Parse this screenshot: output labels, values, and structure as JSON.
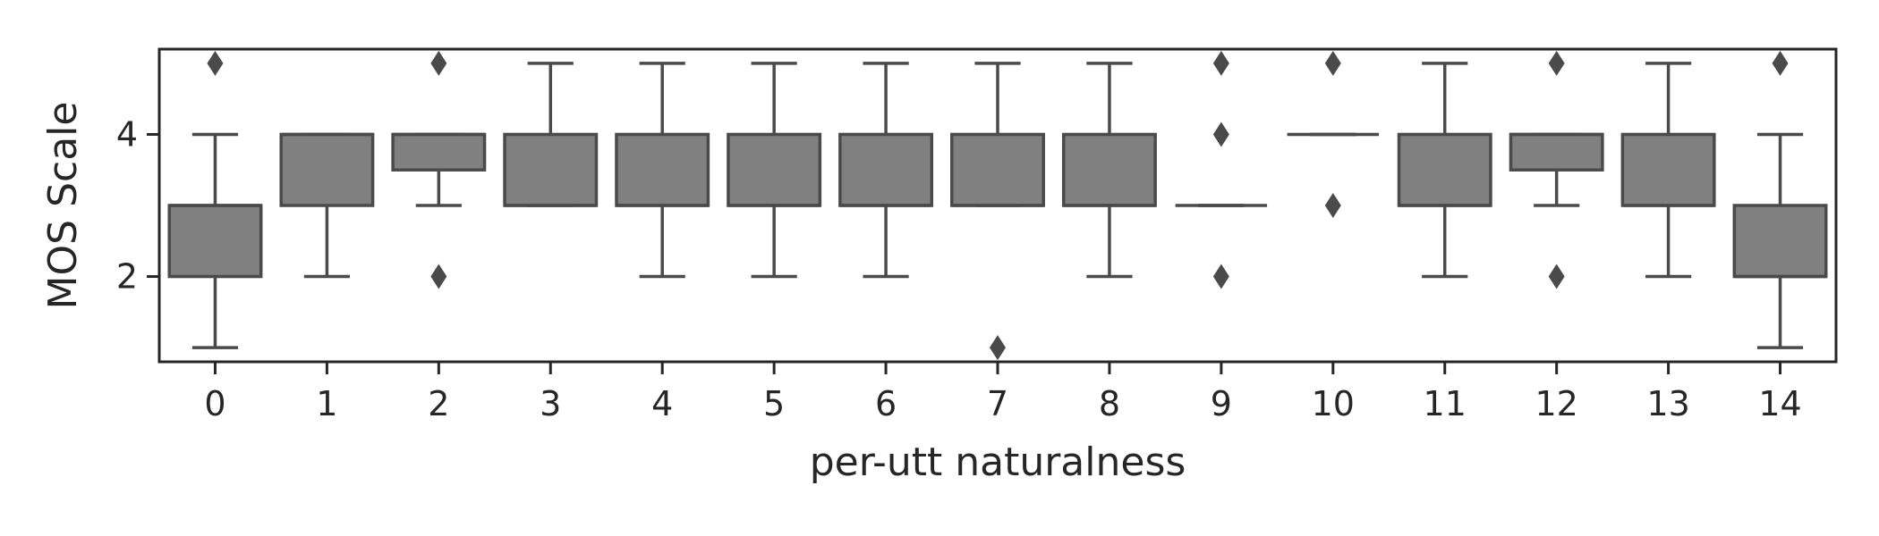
{
  "chart_data": {
    "type": "box",
    "title": "",
    "xlabel": "per-utt naturalness",
    "ylabel": "MOS Scale",
    "ylim": [
      0.8,
      5.2
    ],
    "yticks": [
      2,
      4
    ],
    "grid": false,
    "categories": [
      "0",
      "1",
      "2",
      "3",
      "4",
      "5",
      "6",
      "7",
      "8",
      "9",
      "10",
      "11",
      "12",
      "13",
      "14"
    ],
    "box_color": "#808080",
    "line_color": "#4a4a4a",
    "boxes": [
      {
        "category": "0",
        "whisker_low": 1,
        "q1": 2,
        "median": 3,
        "q3": 3,
        "whisker_high": 4,
        "outliers": [
          5
        ]
      },
      {
        "category": "1",
        "whisker_low": 2,
        "q1": 3,
        "median": 4,
        "q3": 4,
        "whisker_high": 4,
        "outliers": []
      },
      {
        "category": "2",
        "whisker_low": 3,
        "q1": 3.5,
        "median": 4,
        "q3": 4,
        "whisker_high": 4,
        "outliers": [
          2,
          5
        ]
      },
      {
        "category": "3",
        "whisker_low": 3,
        "q1": 3,
        "median": 3,
        "q3": 4,
        "whisker_high": 5,
        "outliers": []
      },
      {
        "category": "4",
        "whisker_low": 2,
        "q1": 3,
        "median": 3,
        "q3": 4,
        "whisker_high": 5,
        "outliers": []
      },
      {
        "category": "5",
        "whisker_low": 2,
        "q1": 3,
        "median": 3,
        "q3": 4,
        "whisker_high": 5,
        "outliers": []
      },
      {
        "category": "6",
        "whisker_low": 2,
        "q1": 3,
        "median": 3,
        "q3": 4,
        "whisker_high": 5,
        "outliers": []
      },
      {
        "category": "7",
        "whisker_low": 3,
        "q1": 3,
        "median": 3,
        "q3": 4,
        "whisker_high": 5,
        "outliers": [
          1
        ]
      },
      {
        "category": "8",
        "whisker_low": 2,
        "q1": 3,
        "median": 3,
        "q3": 4,
        "whisker_high": 5,
        "outliers": []
      },
      {
        "category": "9",
        "whisker_low": 3,
        "q1": 3,
        "median": 3,
        "q3": 3,
        "whisker_high": 3,
        "outliers": [
          2,
          4,
          5
        ]
      },
      {
        "category": "10",
        "whisker_low": 4,
        "q1": 4,
        "median": 4,
        "q3": 4,
        "whisker_high": 4,
        "outliers": [
          3,
          5
        ]
      },
      {
        "category": "11",
        "whisker_low": 2,
        "q1": 3,
        "median": 3,
        "q3": 4,
        "whisker_high": 5,
        "outliers": []
      },
      {
        "category": "12",
        "whisker_low": 3,
        "q1": 3.5,
        "median": 4,
        "q3": 4,
        "whisker_high": 4,
        "outliers": [
          2,
          5
        ]
      },
      {
        "category": "13",
        "whisker_low": 2,
        "q1": 3,
        "median": 3,
        "q3": 4,
        "whisker_high": 5,
        "outliers": []
      },
      {
        "category": "14",
        "whisker_low": 1,
        "q1": 2,
        "median": 2,
        "q3": 3,
        "whisker_high": 4,
        "outliers": [
          5
        ]
      }
    ]
  }
}
